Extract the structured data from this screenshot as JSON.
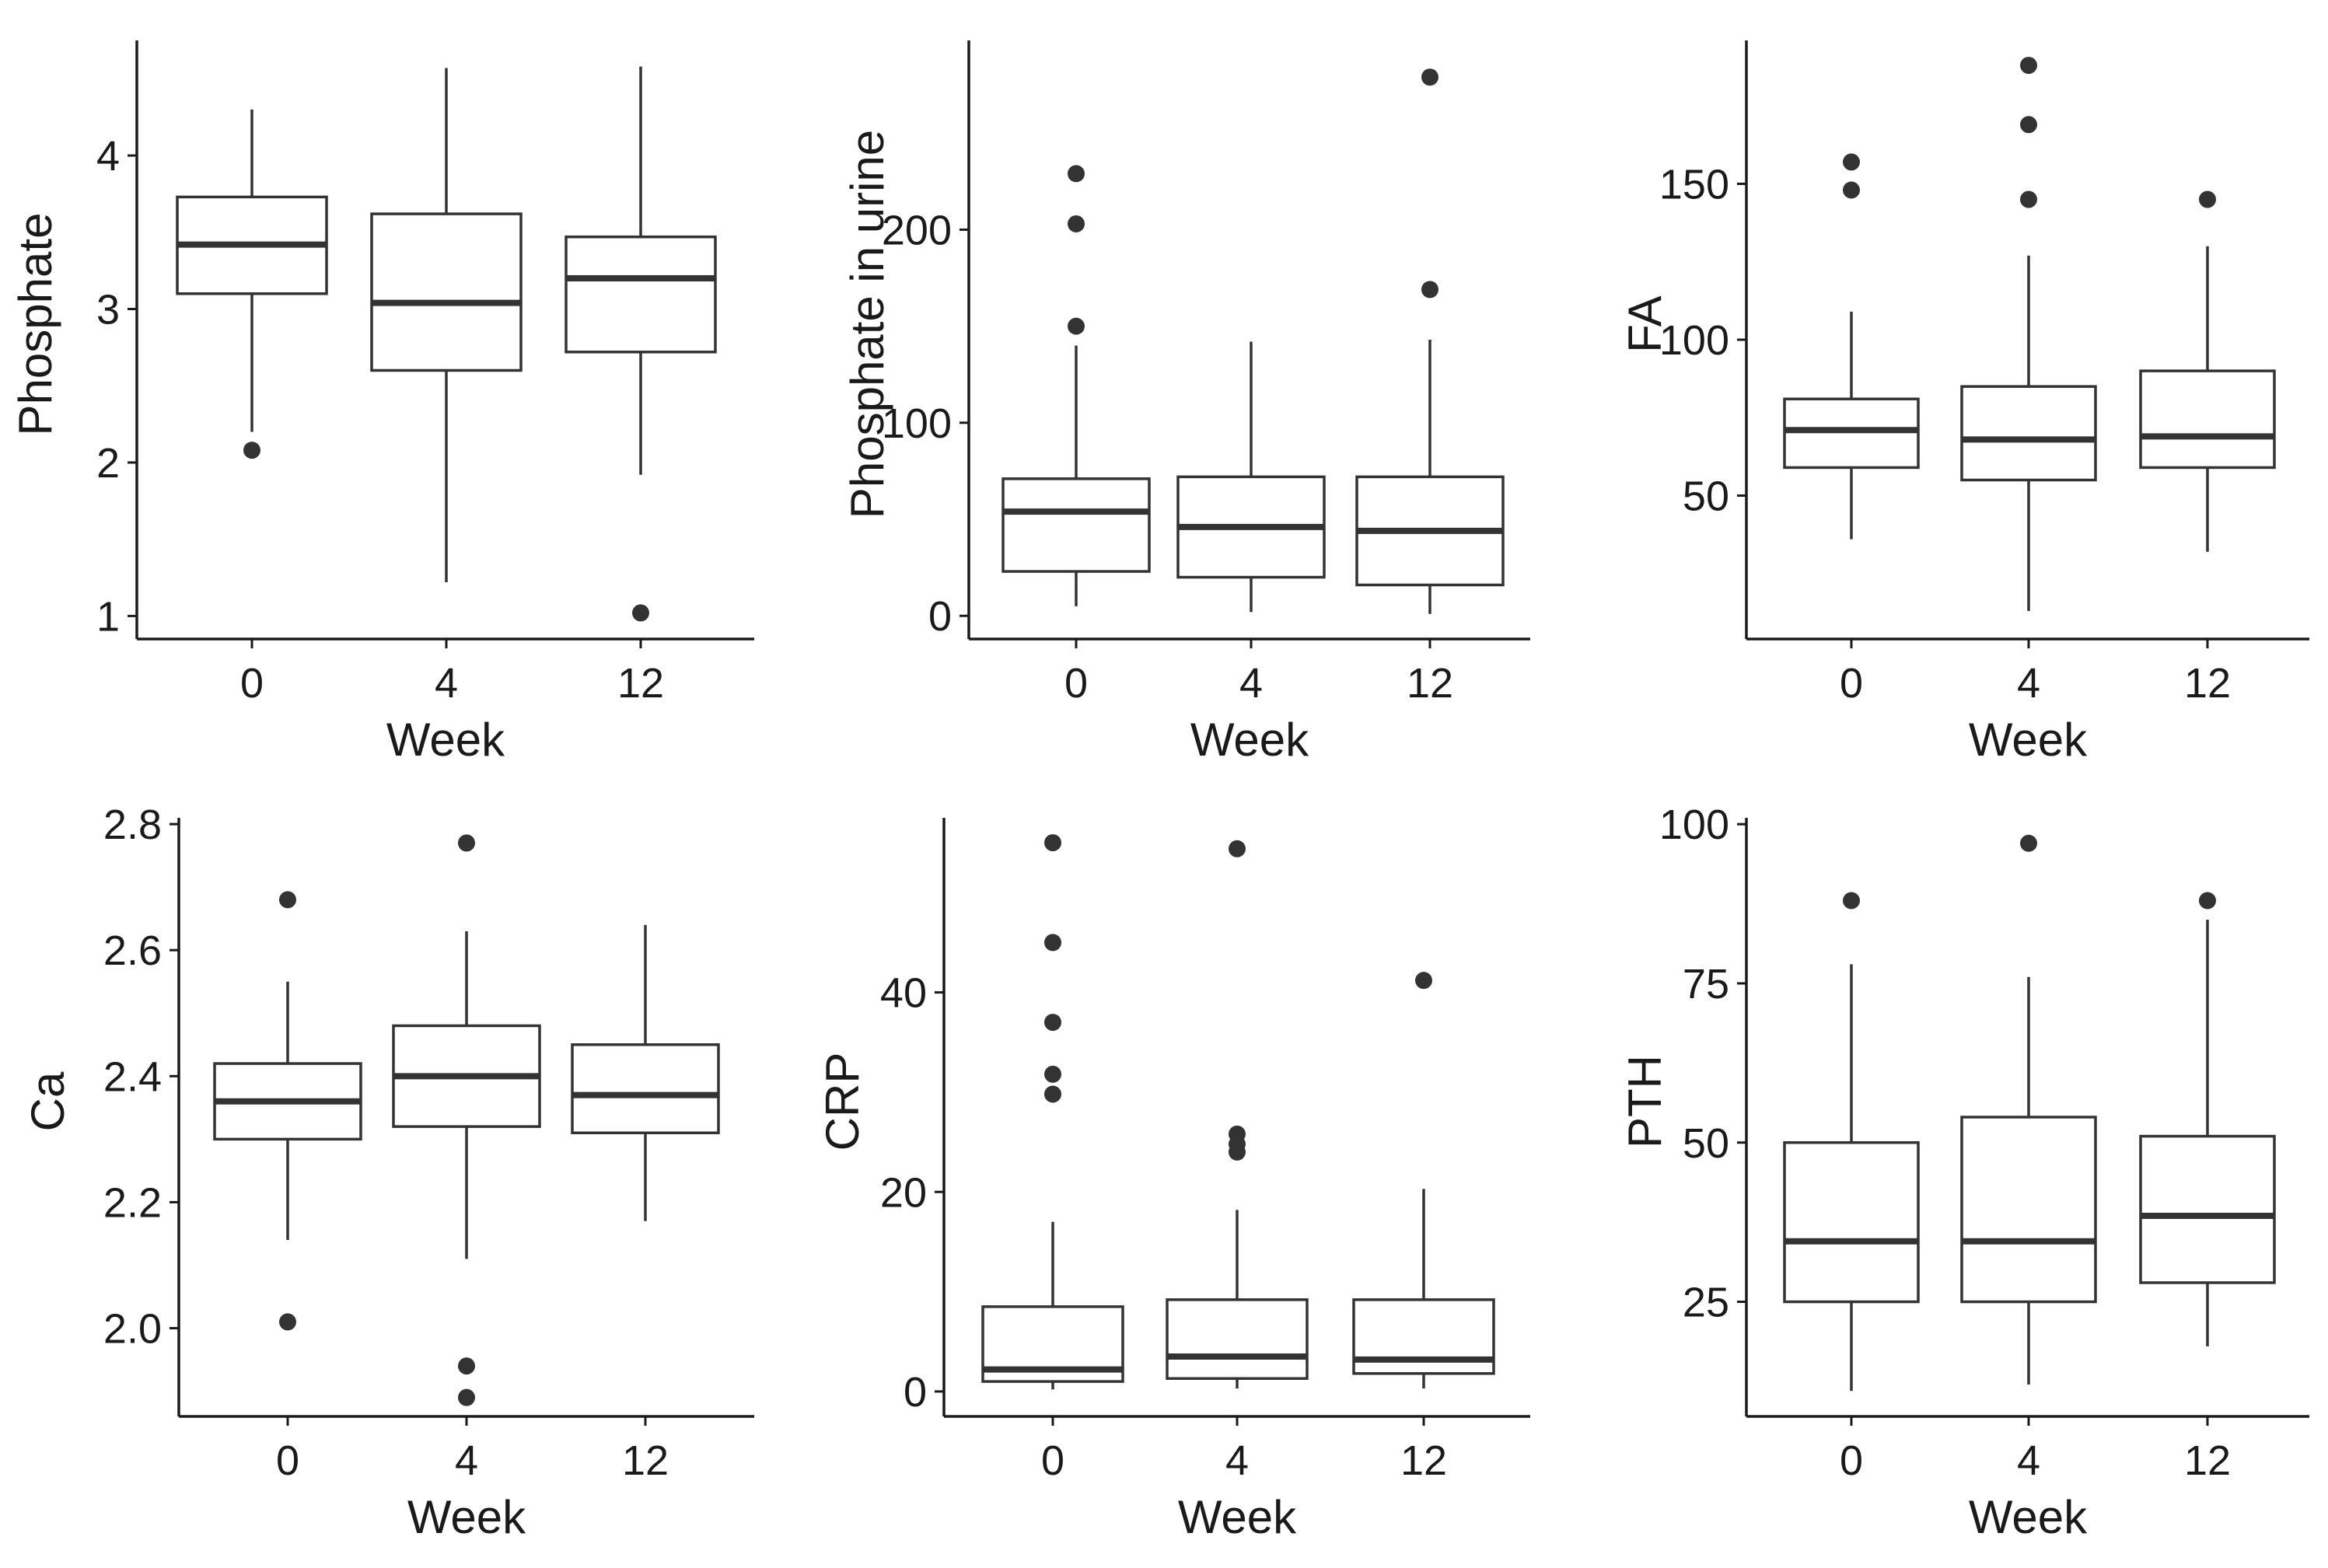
{
  "chart_data": [
    {
      "type": "box",
      "xlabel": "Week",
      "ylabel": "Phosphate",
      "categories": [
        "0",
        "4",
        "12"
      ],
      "ylim": [
        0.85,
        4.75
      ],
      "yticks": [
        1,
        2,
        3,
        4
      ],
      "boxes": [
        {
          "category": "0",
          "whisker_low": 2.2,
          "q1": 3.1,
          "median": 3.42,
          "q3": 3.73,
          "whisker_high": 4.3,
          "outliers": [
            2.08
          ]
        },
        {
          "category": "4",
          "whisker_low": 1.22,
          "q1": 2.6,
          "median": 3.04,
          "q3": 3.62,
          "whisker_high": 4.57,
          "outliers": []
        },
        {
          "category": "12",
          "whisker_low": 1.92,
          "q1": 2.72,
          "median": 3.2,
          "q3": 3.47,
          "whisker_high": 4.58,
          "outliers": [
            1.02
          ]
        }
      ]
    },
    {
      "type": "box",
      "xlabel": "Week",
      "ylabel": "Phosphate in urine",
      "categories": [
        "0",
        "4",
        "12"
      ],
      "ylim": [
        -12,
        298
      ],
      "yticks": [
        0,
        100,
        200
      ],
      "boxes": [
        {
          "category": "0",
          "whisker_low": 5,
          "q1": 23,
          "median": 54,
          "q3": 71,
          "whisker_high": 140,
          "outliers": [
            150,
            203,
            229
          ]
        },
        {
          "category": "4",
          "whisker_low": 2,
          "q1": 20,
          "median": 46,
          "q3": 72,
          "whisker_high": 142,
          "outliers": []
        },
        {
          "category": "12",
          "whisker_low": 1,
          "q1": 16,
          "median": 44,
          "q3": 72,
          "whisker_high": 143,
          "outliers": [
            169,
            279
          ]
        }
      ]
    },
    {
      "type": "box",
      "xlabel": "Week",
      "ylabel": "FA",
      "categories": [
        "0",
        "4",
        "12"
      ],
      "ylim": [
        4,
        196
      ],
      "yticks": [
        50,
        100,
        150
      ],
      "boxes": [
        {
          "category": "0",
          "whisker_low": 36,
          "q1": 59,
          "median": 71,
          "q3": 81,
          "whisker_high": 109,
          "outliers": [
            148,
            157
          ]
        },
        {
          "category": "4",
          "whisker_low": 13,
          "q1": 55,
          "median": 68,
          "q3": 85,
          "whisker_high": 127,
          "outliers": [
            145,
            169,
            188
          ]
        },
        {
          "category": "12",
          "whisker_low": 32,
          "q1": 59,
          "median": 69,
          "q3": 90,
          "whisker_high": 130,
          "outliers": [
            145
          ]
        }
      ]
    },
    {
      "type": "box",
      "xlabel": "Week",
      "ylabel": "Ca",
      "categories": [
        "0",
        "4",
        "12"
      ],
      "ylim": [
        1.86,
        2.81
      ],
      "yticks": [
        2.0,
        2.2,
        2.4,
        2.6,
        2.8
      ],
      "ytick_labels": [
        "2.0",
        "2.2",
        "2.4",
        "2.6",
        "2.8"
      ],
      "boxes": [
        {
          "category": "0",
          "whisker_low": 2.14,
          "q1": 2.3,
          "median": 2.36,
          "q3": 2.42,
          "whisker_high": 2.55,
          "outliers": [
            2.01,
            2.68
          ]
        },
        {
          "category": "4",
          "whisker_low": 2.11,
          "q1": 2.32,
          "median": 2.4,
          "q3": 2.48,
          "whisker_high": 2.63,
          "outliers": [
            1.89,
            1.94,
            2.77
          ]
        },
        {
          "category": "12",
          "whisker_low": 2.17,
          "q1": 2.31,
          "median": 2.37,
          "q3": 2.45,
          "whisker_high": 2.64,
          "outliers": []
        }
      ]
    },
    {
      "type": "box",
      "xlabel": "Week",
      "ylabel": "CRP",
      "categories": [
        "0",
        "4",
        "12"
      ],
      "ylim": [
        -2.5,
        57.5
      ],
      "yticks": [
        0,
        20,
        40
      ],
      "boxes": [
        {
          "category": "0",
          "whisker_low": 0.2,
          "q1": 1,
          "median": 2.2,
          "q3": 8.5,
          "whisker_high": 17,
          "outliers": [
            29.8,
            31.8,
            37,
            45,
            55
          ]
        },
        {
          "category": "4",
          "whisker_low": 0.3,
          "q1": 1.3,
          "median": 3.5,
          "q3": 9.2,
          "whisker_high": 18.2,
          "outliers": [
            24,
            24.8,
            25.8,
            54.4
          ]
        },
        {
          "category": "12",
          "whisker_low": 0.3,
          "q1": 1.8,
          "median": 3.2,
          "q3": 9.2,
          "whisker_high": 20.3,
          "outliers": [
            41.2
          ]
        }
      ]
    },
    {
      "type": "box",
      "xlabel": "Week",
      "ylabel": "PTH",
      "categories": [
        "0",
        "4",
        "12"
      ],
      "ylim": [
        7,
        101
      ],
      "yticks": [
        25,
        50,
        75,
        100
      ],
      "boxes": [
        {
          "category": "0",
          "whisker_low": 11,
          "q1": 25,
          "median": 34.5,
          "q3": 50,
          "whisker_high": 78,
          "outliers": [
            88
          ]
        },
        {
          "category": "4",
          "whisker_low": 12,
          "q1": 25,
          "median": 34.5,
          "q3": 54,
          "whisker_high": 76,
          "outliers": [
            97
          ]
        },
        {
          "category": "12",
          "whisker_low": 18,
          "q1": 28,
          "median": 38.5,
          "q3": 51,
          "whisker_high": 85,
          "outliers": [
            88
          ]
        }
      ]
    }
  ]
}
